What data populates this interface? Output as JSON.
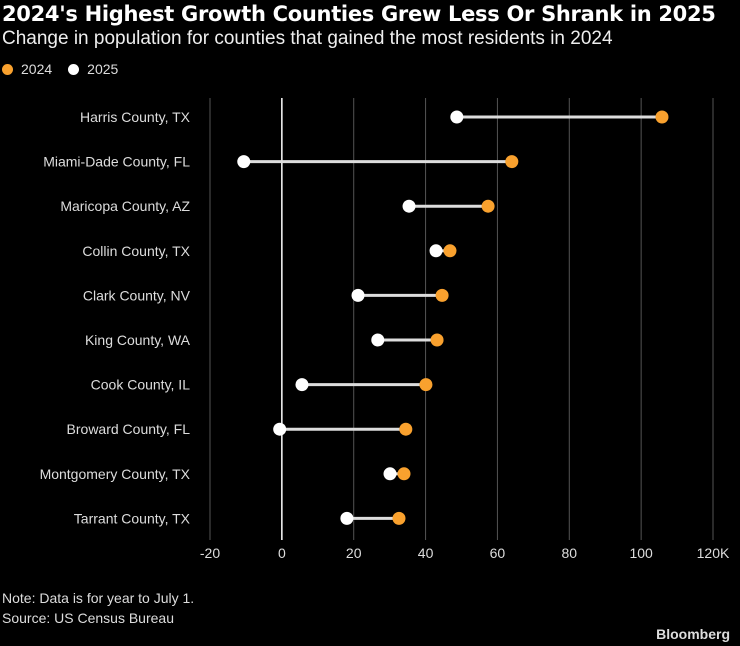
{
  "chart_data": {
    "type": "dumbbell",
    "title": "2024's Highest Growth Counties Grew Less Or Shrank in 2025",
    "subtitle": "Change in population for counties that gained the most residents in 2024",
    "categories": [
      "Harris County, TX",
      "Miami-Dade County, FL",
      "Maricopa County, AZ",
      "Collin County, TX",
      "Clark County, NV",
      "King County, WA",
      "Cook County, IL",
      "Broward County, FL",
      "Montgomery County, TX",
      "Tarrant County, TX"
    ],
    "series": [
      {
        "name": "2024",
        "color": "#f9a12e",
        "values": [
          105.8,
          64.0,
          57.4,
          46.8,
          44.6,
          43.2,
          40.1,
          34.5,
          34.0,
          32.6
        ]
      },
      {
        "name": "2025",
        "color": "#ffffff",
        "values": [
          48.7,
          -10.6,
          35.4,
          42.9,
          21.2,
          26.7,
          5.6,
          -0.6,
          30.1,
          18.1
        ]
      }
    ],
    "xlim": [
      -20,
      120
    ],
    "xticks": [
      -20,
      0,
      20,
      40,
      60,
      80,
      100,
      120
    ],
    "xtick_labels": [
      "-20",
      "0",
      "20",
      "40",
      "60",
      "80",
      "100",
      "120K"
    ],
    "xlabel": "",
    "ylabel": "",
    "grid": true,
    "legend": "top-left"
  },
  "footer": {
    "note": "Note: Data is for year to July 1.",
    "source": "Source: US Census Bureau",
    "brand": "Bloomberg"
  }
}
